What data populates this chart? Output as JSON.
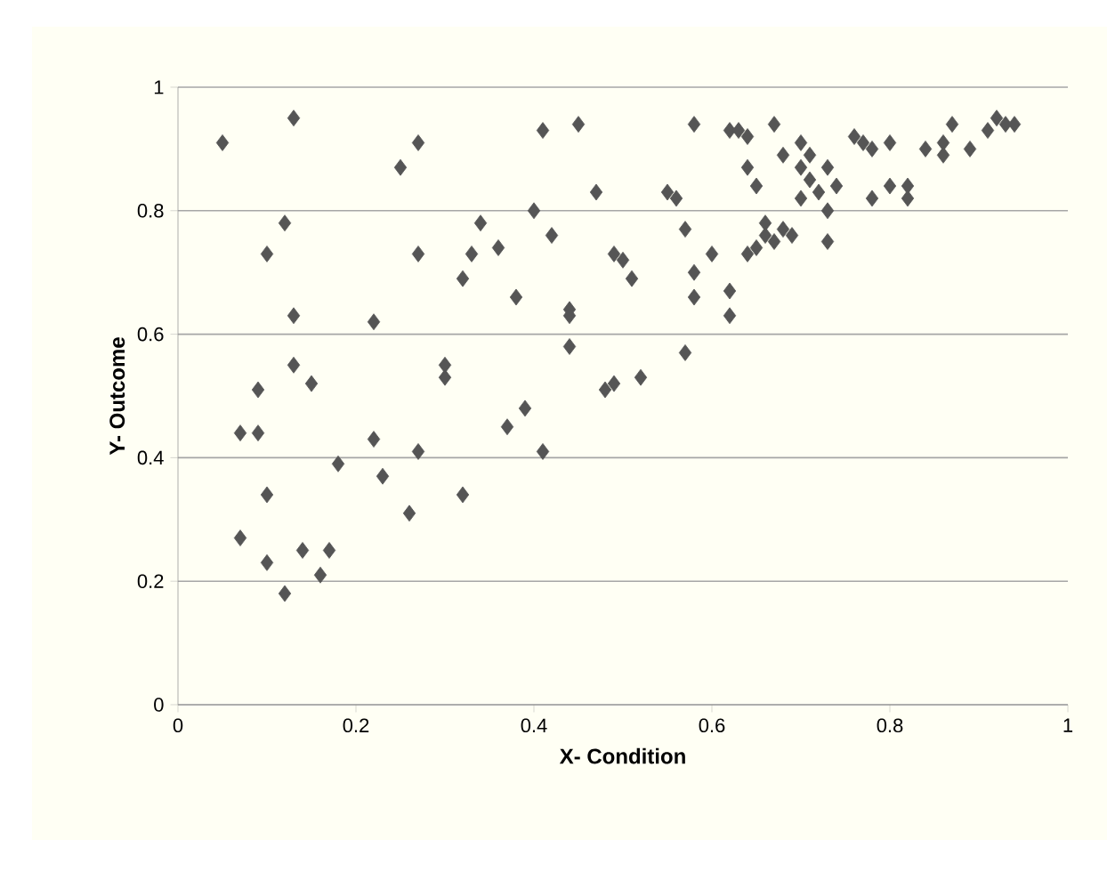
{
  "chart_data": {
    "type": "scatter",
    "xlabel": "X- Condition",
    "ylabel": "Y- Outcome",
    "x": [
      0.05,
      0.13,
      0.12,
      0.1,
      0.25,
      0.27,
      0.27,
      0.22,
      0.13,
      0.13,
      0.15,
      0.09,
      0.07,
      0.09,
      0.1,
      0.07,
      0.1,
      0.12,
      0.14,
      0.17,
      0.16,
      0.18,
      0.22,
      0.23,
      0.26,
      0.27,
      0.32,
      0.3,
      0.3,
      0.32,
      0.33,
      0.34,
      0.36,
      0.38,
      0.37,
      0.39,
      0.41,
      0.4,
      0.41,
      0.42,
      0.44,
      0.44,
      0.44,
      0.45,
      0.47,
      0.48,
      0.49,
      0.49,
      0.5,
      0.51,
      0.52,
      0.55,
      0.56,
      0.57,
      0.57,
      0.58,
      0.58,
      0.58,
      0.6,
      0.62,
      0.63,
      0.62,
      0.62,
      0.64,
      0.64,
      0.65,
      0.64,
      0.65,
      0.66,
      0.66,
      0.67,
      0.68,
      0.67,
      0.68,
      0.69,
      0.7,
      0.7,
      0.71,
      0.71,
      0.72,
      0.73,
      0.73,
      0.73,
      0.74,
      0.76,
      0.77,
      0.78,
      0.78,
      0.8,
      0.8,
      0.82,
      0.82,
      0.84,
      0.86,
      0.86,
      0.87,
      0.89,
      0.91,
      0.92,
      0.93,
      0.94,
      0.7
    ],
    "values": [
      0.91,
      0.95,
      0.78,
      0.73,
      0.87,
      0.91,
      0.73,
      0.62,
      0.63,
      0.55,
      0.52,
      0.51,
      0.44,
      0.44,
      0.34,
      0.27,
      0.23,
      0.18,
      0.25,
      0.25,
      0.21,
      0.39,
      0.43,
      0.37,
      0.31,
      0.41,
      0.34,
      0.55,
      0.53,
      0.69,
      0.73,
      0.78,
      0.74,
      0.66,
      0.45,
      0.48,
      0.41,
      0.8,
      0.93,
      0.76,
      0.64,
      0.63,
      0.58,
      0.94,
      0.83,
      0.51,
      0.52,
      0.73,
      0.72,
      0.69,
      0.53,
      0.83,
      0.82,
      0.77,
      0.57,
      0.94,
      0.7,
      0.66,
      0.73,
      0.93,
      0.93,
      0.67,
      0.63,
      0.92,
      0.87,
      0.84,
      0.73,
      0.74,
      0.78,
      0.76,
      0.94,
      0.89,
      0.75,
      0.77,
      0.76,
      0.91,
      0.87,
      0.89,
      0.85,
      0.83,
      0.87,
      0.8,
      0.75,
      0.84,
      0.92,
      0.91,
      0.9,
      0.82,
      0.91,
      0.84,
      0.82,
      0.84,
      0.9,
      0.89,
      0.91,
      0.94,
      0.9,
      0.93,
      0.95,
      0.94,
      0.94,
      0.82
    ],
    "color": "#555555",
    "marker": "diamond",
    "xlim": [
      0,
      1
    ],
    "ylim": [
      0,
      1
    ],
    "xticks": [
      0,
      0.2,
      0.4,
      0.6,
      0.8,
      1
    ],
    "yticks": [
      0,
      0.2,
      0.4,
      0.6,
      0.8,
      1
    ],
    "grid": "y"
  }
}
